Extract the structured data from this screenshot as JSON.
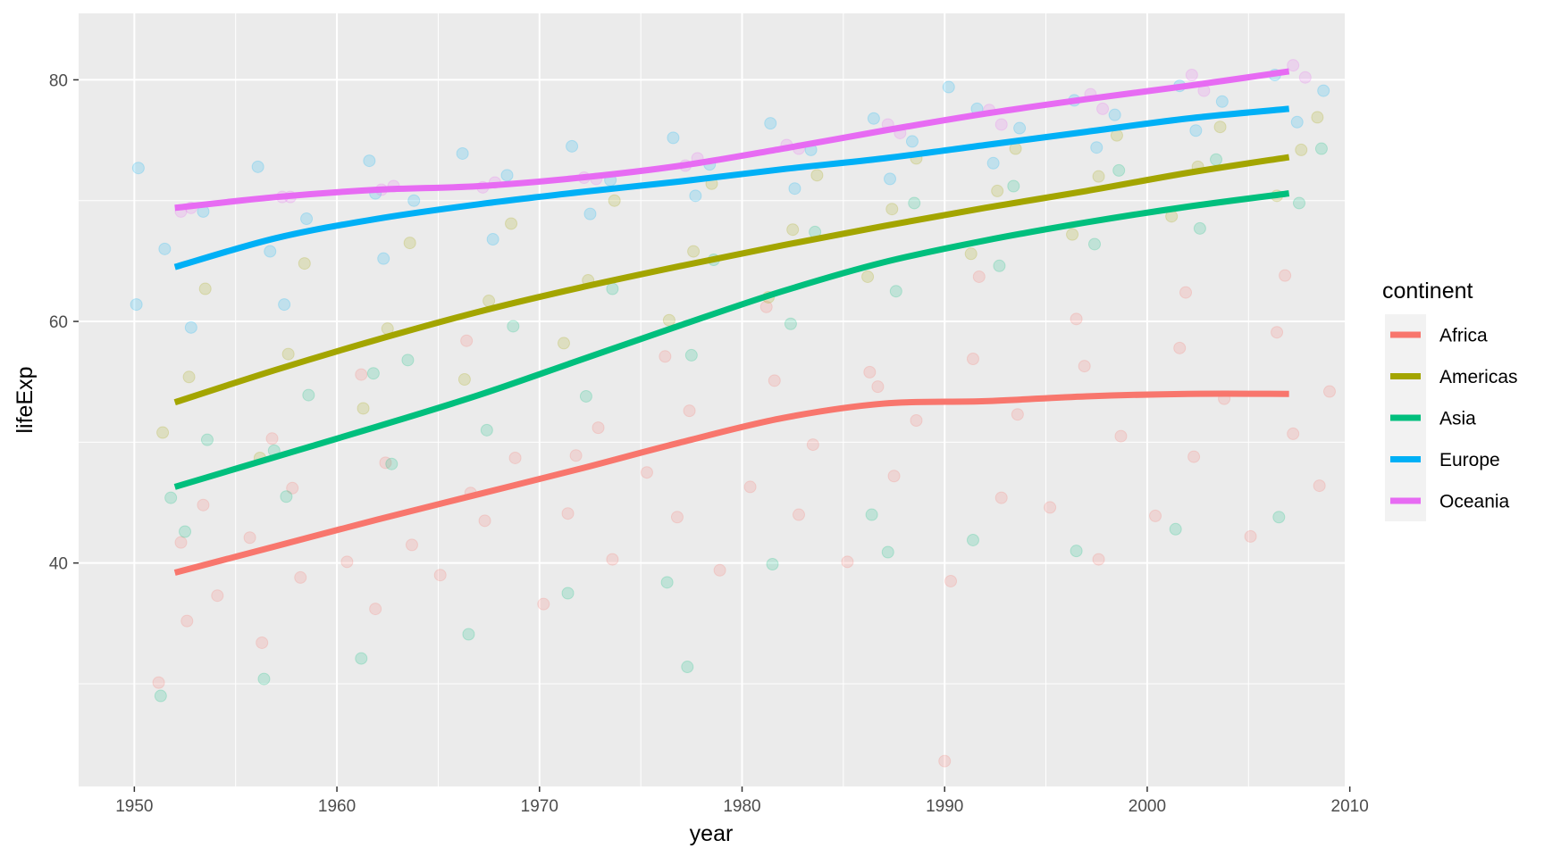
{
  "chart_data": {
    "type": "scatter",
    "xlabel": "year",
    "ylabel": "lifeExp",
    "xlim": [
      1947.25,
      2009.75
    ],
    "ylim": [
      21.5,
      85.5
    ],
    "x_ticks": [
      1950,
      1960,
      1970,
      1980,
      1990,
      2000,
      2010
    ],
    "y_ticks": [
      40,
      60,
      80
    ],
    "grid": true,
    "legend": {
      "title": "continent",
      "placement": "right"
    },
    "series": [
      {
        "name": "Africa",
        "color": "#F8766D",
        "smooth": {
          "x": [
            1952,
            1957,
            1962,
            1967,
            1972,
            1977,
            1982,
            1987,
            1992,
            1997,
            2002,
            2007
          ],
          "y": [
            39.2,
            41.4,
            43.6,
            45.7,
            47.8,
            50.0,
            52.0,
            53.2,
            53.4,
            53.8,
            54.0,
            54.0
          ]
        },
        "points": {
          "x": [
            1951.2,
            1952.6,
            1953.4,
            1954.1,
            1955.7,
            1956.3,
            1957.8,
            1958.2,
            1960.5,
            1961.9,
            1962.4,
            1963.7,
            1965.1,
            1966.6,
            1967.3,
            1968.8,
            1970.2,
            1971.4,
            1972.9,
            1973.6,
            1975.3,
            1976.8,
            1977.4,
            1978.9,
            1980.4,
            1981.6,
            1982.8,
            1983.5,
            1985.2,
            1986.7,
            1987.5,
            1988.6,
            1990.3,
            1991.4,
            1992.8,
            1993.6,
            1995.2,
            1996.5,
            1997.6,
            1998.7,
            2000.4,
            2001.6,
            2002.3,
            2003.8,
            2005.1,
            2006.4,
            2007.2,
            2008.5,
            2009.0,
            1952.3,
            1956.8,
            1961.2,
            1966.4,
            1971.8,
            1976.2,
            1981.2,
            1986.3,
            1991.7,
            1996.9,
            2001.9,
            2006.8,
            1990.0
          ],
          "y": [
            30.1,
            35.2,
            44.8,
            37.3,
            42.1,
            33.4,
            46.2,
            38.8,
            40.1,
            36.2,
            48.3,
            41.5,
            39.0,
            45.8,
            43.5,
            48.7,
            36.6,
            44.1,
            51.2,
            40.3,
            47.5,
            43.8,
            52.6,
            39.4,
            46.3,
            55.1,
            44.0,
            49.8,
            40.1,
            54.6,
            47.2,
            51.8,
            38.5,
            56.9,
            45.4,
            52.3,
            44.6,
            60.2,
            40.3,
            50.5,
            43.9,
            57.8,
            48.8,
            53.6,
            42.2,
            59.1,
            50.7,
            46.4,
            54.2,
            41.7,
            50.3,
            55.6,
            58.4,
            48.9,
            57.1,
            61.2,
            55.8,
            63.7,
            56.3,
            62.4,
            63.8,
            23.6
          ]
        }
      },
      {
        "name": "Americas",
        "color": "#A3A500",
        "smooth": {
          "x": [
            1952,
            1957,
            1962,
            1967,
            1972,
            1977,
            1982,
            1987,
            1992,
            1997,
            2002,
            2007
          ],
          "y": [
            53.3,
            56.0,
            58.5,
            60.8,
            62.8,
            64.6,
            66.3,
            67.9,
            69.4,
            70.8,
            72.3,
            73.6
          ]
        },
        "points": {
          "x": [
            1951.4,
            1952.7,
            1953.5,
            1956.2,
            1957.6,
            1958.4,
            1961.3,
            1962.5,
            1963.6,
            1966.3,
            1967.5,
            1968.6,
            1971.2,
            1972.4,
            1973.7,
            1976.4,
            1977.6,
            1978.5,
            1981.3,
            1982.5,
            1983.7,
            1986.2,
            1987.4,
            1988.6,
            1991.3,
            1992.6,
            1993.5,
            1996.3,
            1997.6,
            1998.5,
            2001.2,
            2002.5,
            2003.6,
            2006.4,
            2007.6,
            2008.4
          ],
          "y": [
            50.8,
            55.4,
            62.7,
            48.7,
            57.3,
            64.8,
            52.8,
            59.4,
            66.5,
            55.2,
            61.7,
            68.1,
            58.2,
            63.4,
            70.0,
            60.1,
            65.8,
            71.4,
            62.0,
            67.6,
            72.1,
            63.7,
            69.3,
            73.5,
            65.6,
            70.8,
            74.3,
            67.2,
            72.0,
            75.4,
            68.7,
            72.8,
            76.1,
            70.4,
            74.2,
            76.9
          ]
        }
      },
      {
        "name": "Asia",
        "color": "#00BF7D",
        "smooth": {
          "x": [
            1952,
            1957,
            1962,
            1967,
            1972,
            1977,
            1982,
            1987,
            1992,
            1997,
            2002,
            2007
          ],
          "y": [
            46.3,
            48.8,
            51.3,
            53.9,
            56.8,
            59.7,
            62.5,
            64.9,
            66.7,
            68.2,
            69.5,
            70.6
          ]
        },
        "points": {
          "x": [
            1951.3,
            1952.5,
            1953.6,
            1956.4,
            1957.5,
            1958.6,
            1961.2,
            1962.7,
            1963.5,
            1966.5,
            1967.4,
            1968.7,
            1971.4,
            1972.3,
            1973.6,
            1976.3,
            1977.5,
            1978.6,
            1981.5,
            1982.4,
            1983.6,
            1986.4,
            1987.6,
            1988.5,
            1991.4,
            1992.7,
            1993.4,
            1996.5,
            1997.4,
            1998.6,
            2001.4,
            2002.6,
            2003.4,
            2006.5,
            2007.5,
            2008.6,
            1951.8,
            1956.9,
            1961.8,
            1977.3,
            1987.2
          ],
          "y": [
            29.0,
            42.6,
            50.2,
            30.4,
            45.5,
            53.9,
            32.1,
            48.2,
            56.8,
            34.1,
            51.0,
            59.6,
            37.5,
            53.8,
            62.7,
            38.4,
            57.2,
            65.1,
            39.9,
            59.8,
            67.4,
            44.0,
            62.5,
            69.8,
            41.9,
            64.6,
            71.2,
            41.0,
            66.4,
            72.5,
            42.8,
            67.7,
            73.4,
            43.8,
            69.8,
            74.3,
            45.4,
            49.3,
            55.7,
            31.4,
            40.9
          ]
        }
      },
      {
        "name": "Europe",
        "color": "#00B0F6",
        "smooth": {
          "x": [
            1952,
            1957,
            1962,
            1967,
            1972,
            1977,
            1982,
            1987,
            1992,
            1997,
            2002,
            2007
          ],
          "y": [
            64.5,
            66.9,
            68.5,
            69.7,
            70.7,
            71.6,
            72.6,
            73.5,
            74.6,
            75.7,
            76.8,
            77.6
          ]
        },
        "points": {
          "x": [
            1950.2,
            1951.5,
            1952.8,
            1953.4,
            1956.1,
            1957.4,
            1958.5,
            1961.6,
            1962.3,
            1963.8,
            1966.2,
            1967.7,
            1968.4,
            1971.6,
            1972.5,
            1973.5,
            1976.6,
            1977.7,
            1978.4,
            1981.4,
            1982.6,
            1983.4,
            1986.5,
            1987.3,
            1988.4,
            1991.6,
            1992.4,
            1993.7,
            1996.4,
            1997.5,
            1998.4,
            2001.6,
            2002.4,
            2003.7,
            2006.3,
            2007.4,
            2008.7,
            1950.1,
            1956.7,
            1961.9,
            1990.2
          ],
          "y": [
            72.7,
            66.0,
            59.5,
            69.1,
            72.8,
            61.4,
            68.5,
            73.3,
            65.2,
            70.0,
            73.9,
            66.8,
            72.1,
            74.5,
            68.9,
            71.7,
            75.2,
            70.4,
            73.0,
            76.4,
            71.0,
            74.2,
            76.8,
            71.8,
            74.9,
            77.6,
            73.1,
            76.0,
            78.3,
            74.4,
            77.1,
            79.5,
            75.8,
            78.2,
            80.4,
            76.5,
            79.1,
            61.4,
            65.8,
            70.6,
            79.4
          ]
        }
      },
      {
        "name": "Oceania",
        "color": "#E76BF3",
        "smooth": {
          "x": [
            1952,
            1957,
            1962,
            1967,
            1972,
            1977,
            1982,
            1987,
            1992,
            1997,
            2002,
            2007
          ],
          "y": [
            69.4,
            70.3,
            70.9,
            71.2,
            71.9,
            72.9,
            74.3,
            75.8,
            77.2,
            78.4,
            79.5,
            80.7
          ]
        },
        "points": {
          "x": [
            1952.3,
            1952.8,
            1957.3,
            1957.7,
            1962.2,
            1962.8,
            1967.2,
            1967.8,
            1972.2,
            1972.8,
            1977.2,
            1977.8,
            1982.2,
            1982.8,
            1987.2,
            1987.8,
            1992.2,
            1992.8,
            1997.2,
            1997.8,
            2002.2,
            2002.8,
            2007.2,
            2007.8
          ],
          "y": [
            69.1,
            69.4,
            70.3,
            70.3,
            70.9,
            71.2,
            71.1,
            71.5,
            71.9,
            71.8,
            72.9,
            73.5,
            74.6,
            74.3,
            76.3,
            75.6,
            77.5,
            76.3,
            78.8,
            77.6,
            80.4,
            79.1,
            81.2,
            80.2
          ]
        }
      }
    ]
  }
}
